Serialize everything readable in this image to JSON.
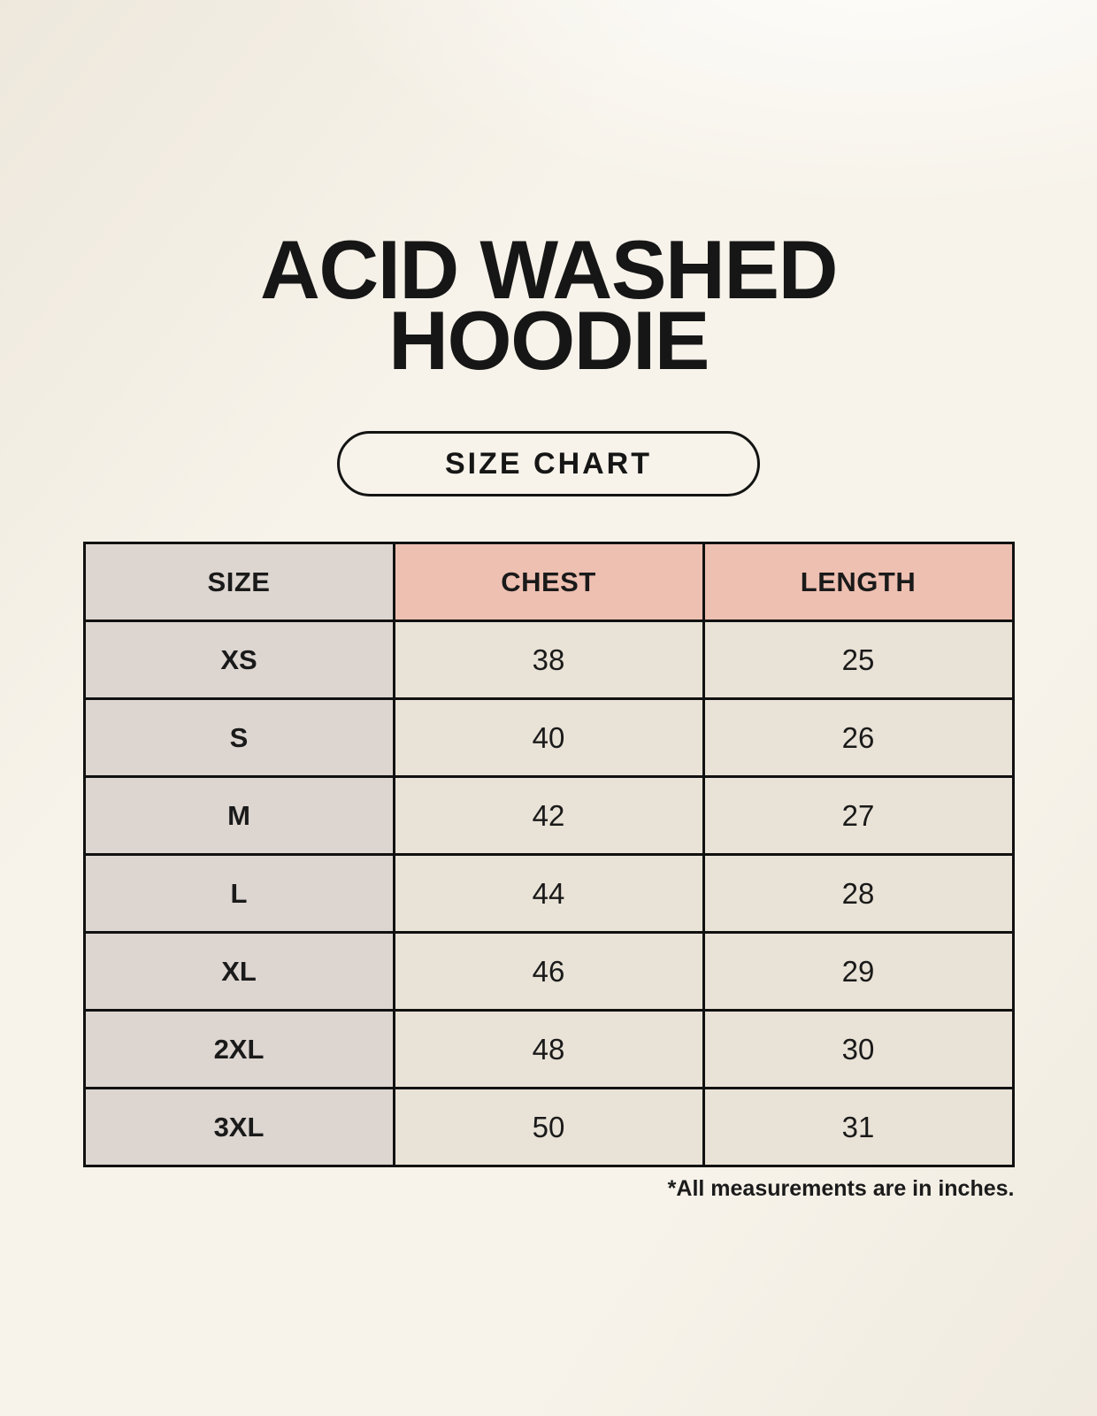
{
  "title": {
    "line1": "ACID WASHED",
    "line2": "HOODIE"
  },
  "size_chart_button": {
    "label": "SIZE CHART"
  },
  "table": {
    "headers": [
      "SIZE",
      "CHEST",
      "LENGTH"
    ],
    "rows": [
      {
        "size": "XS",
        "chest": "38",
        "length": "25"
      },
      {
        "size": "S",
        "chest": "40",
        "length": "26"
      },
      {
        "size": "M",
        "chest": "42",
        "length": "27"
      },
      {
        "size": "L",
        "chest": "44",
        "length": "28"
      },
      {
        "size": "XL",
        "chest": "46",
        "length": "29"
      },
      {
        "size": "2XL",
        "chest": "48",
        "length": "30"
      },
      {
        "size": "3XL",
        "chest": "50",
        "length": "31"
      }
    ],
    "note": "*All measurements are in inches."
  },
  "colors": {
    "background": "#f7f3ea",
    "header_pink": "#eec0b1",
    "size_column_gray": "#dcd5d0",
    "value_cell_cream": "#e9e2d6",
    "border_black": "#111111",
    "text": "#1a1a1a"
  },
  "chart_data": {
    "type": "table",
    "title": "ACID WASHED HOODIE",
    "columns": [
      "SIZE",
      "CHEST",
      "LENGTH"
    ],
    "rows": [
      [
        "XS",
        38,
        25
      ],
      [
        "S",
        40,
        26
      ],
      [
        "M",
        42,
        27
      ],
      [
        "L",
        44,
        28
      ],
      [
        "XL",
        46,
        29
      ],
      [
        "2XL",
        48,
        30
      ],
      [
        "3XL",
        50,
        31
      ]
    ],
    "units": "inches",
    "note": "*All measurements are in inches."
  }
}
